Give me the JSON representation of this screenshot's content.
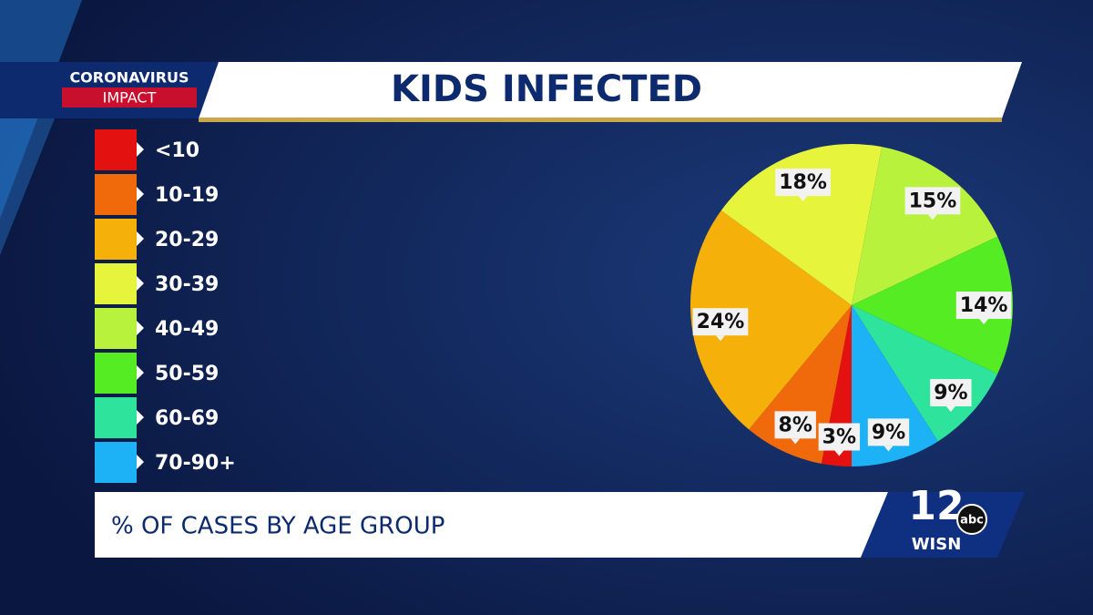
{
  "branding": {
    "show": "CORONAVIRUS",
    "segment": "IMPACT",
    "channel": "12",
    "network": "abc",
    "station": "WISN"
  },
  "chart_data": {
    "type": "pie",
    "title": "KIDS INFECTED",
    "subtitle": "% OF CASES BY AGE GROUP",
    "categories": [
      "<10",
      "10-19",
      "20-29",
      "30-39",
      "40-49",
      "50-59",
      "60-69",
      "70-90+"
    ],
    "values": [
      3,
      8,
      24,
      18,
      15,
      14,
      9,
      9
    ],
    "value_labels": [
      "3%",
      "8%",
      "24%",
      "18%",
      "15%",
      "14%",
      "9%",
      "9%"
    ],
    "colors": [
      "#e41111",
      "#f06a0c",
      "#f5b10a",
      "#e6f53c",
      "#b8f23c",
      "#55ec24",
      "#2ee39c",
      "#1db2f5"
    ],
    "legend": "left"
  }
}
